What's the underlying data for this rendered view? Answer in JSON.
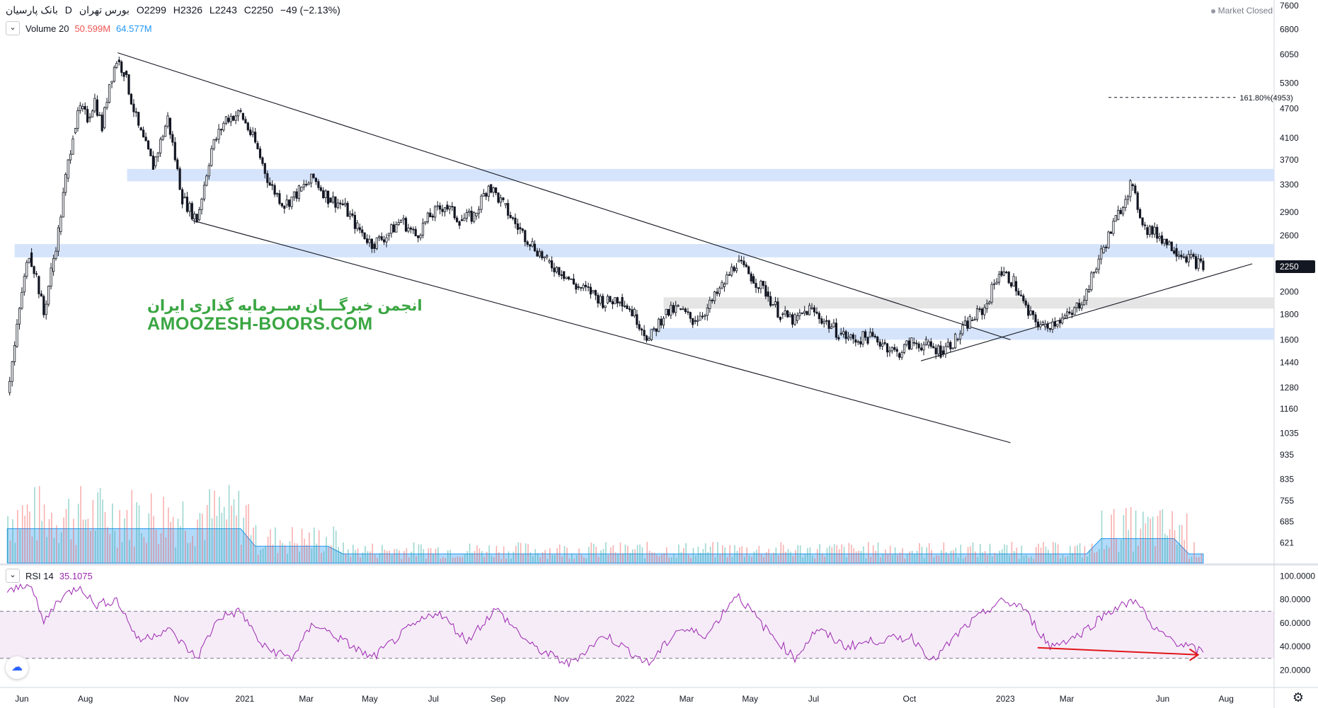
{
  "header": {
    "symbol": "بانک پارسیان",
    "interval": "D",
    "exchange": "بورس تهران",
    "open": "O2299",
    "high": "H2326",
    "low": "L2243",
    "close": "C2250",
    "change": "−49 (−2.13%)"
  },
  "status": {
    "market": "Market Closed"
  },
  "volume_legend": {
    "name": "Volume 20",
    "value1": "50.599M",
    "value2": "64.577M"
  },
  "rsi_legend": {
    "name": "RSI 14",
    "value": "35.1075"
  },
  "watermark": {
    "line1": "انجمن خبرگـــان ســرمایه گذاری ایران",
    "line2": "AMOOZESH-BOORS.COM"
  },
  "colors": {
    "up": "#26a69a",
    "down": "#ef5350",
    "rsi": "#9c27b0",
    "zone": "#d6e4fb",
    "grey_zone": "#e5e5e5",
    "arrow": "#e0161a",
    "wm": "#3aa642"
  },
  "chart_data": [
    {
      "type": "candlestick",
      "scale": "log",
      "price_axis_ticks": [
        7600,
        6800,
        6050,
        5300,
        4700,
        4100,
        3700,
        3300,
        2900,
        2600,
        2250,
        2000,
        1800,
        1600,
        1440,
        1280,
        1160,
        1035,
        935,
        835,
        755,
        685,
        621
      ],
      "last_price": 2250,
      "time_axis": [
        "Jun",
        "Aug",
        "Nov",
        "2021",
        "Mar",
        "May",
        "Jul",
        "Sep",
        "Nov",
        "2022",
        "Mar",
        "May",
        "Jul",
        "Oct",
        "2023",
        "Mar",
        "Jun",
        "Aug"
      ],
      "close_path": [
        [
          "2020-05-18",
          1250
        ],
        [
          "2020-05-25",
          1550
        ],
        [
          "2020-06-01",
          2000
        ],
        [
          "2020-06-08",
          2400
        ],
        [
          "2020-06-15",
          2150
        ],
        [
          "2020-06-22",
          1800
        ],
        [
          "2020-06-29",
          2200
        ],
        [
          "2020-07-06",
          2650
        ],
        [
          "2020-07-13",
          3400
        ],
        [
          "2020-07-20",
          4200
        ],
        [
          "2020-07-27",
          4700
        ],
        [
          "2020-08-03",
          4500
        ],
        [
          "2020-08-10",
          4900
        ],
        [
          "2020-08-17",
          4300
        ],
        [
          "2020-08-24",
          5300
        ],
        [
          "2020-08-31",
          5900
        ],
        [
          "2020-09-07",
          5600
        ],
        [
          "2020-09-21",
          4300
        ],
        [
          "2020-10-05",
          3600
        ],
        [
          "2020-10-19",
          4500
        ],
        [
          "2020-11-02",
          3100
        ],
        [
          "2020-11-16",
          2800
        ],
        [
          "2020-11-30",
          3900
        ],
        [
          "2020-12-14",
          4500
        ],
        [
          "2020-12-28",
          4600
        ],
        [
          "2021-01-11",
          4000
        ],
        [
          "2021-01-25",
          3300
        ],
        [
          "2021-02-08",
          3000
        ],
        [
          "2021-02-22",
          3200
        ],
        [
          "2021-03-08",
          3400
        ],
        [
          "2021-03-22",
          3100
        ],
        [
          "2021-04-05",
          3000
        ],
        [
          "2021-04-19",
          2700
        ],
        [
          "2021-05-03",
          2500
        ],
        [
          "2021-05-17",
          2600
        ],
        [
          "2021-05-31",
          2800
        ],
        [
          "2021-06-14",
          2600
        ],
        [
          "2021-06-28",
          2850
        ],
        [
          "2021-07-12",
          3000
        ],
        [
          "2021-07-26",
          2800
        ],
        [
          "2021-08-09",
          2850
        ],
        [
          "2021-08-23",
          3300
        ],
        [
          "2021-09-06",
          3000
        ],
        [
          "2021-09-20",
          2700
        ],
        [
          "2021-10-04",
          2500
        ],
        [
          "2021-10-18",
          2300
        ],
        [
          "2021-11-01",
          2200
        ],
        [
          "2021-11-15",
          2050
        ],
        [
          "2021-11-29",
          2000
        ],
        [
          "2021-12-13",
          1900
        ],
        [
          "2021-12-27",
          1950
        ],
        [
          "2022-01-10",
          1800
        ],
        [
          "2022-01-24",
          1600
        ],
        [
          "2022-02-07",
          1800
        ],
        [
          "2022-02-21",
          1850
        ],
        [
          "2022-03-07",
          1750
        ],
        [
          "2022-03-21",
          1850
        ],
        [
          "2022-04-04",
          2050
        ],
        [
          "2022-04-18",
          2300
        ],
        [
          "2022-05-02",
          2150
        ],
        [
          "2022-05-16",
          2000
        ],
        [
          "2022-05-30",
          1800
        ],
        [
          "2022-06-13",
          1750
        ],
        [
          "2022-06-27",
          1850
        ],
        [
          "2022-07-11",
          1750
        ],
        [
          "2022-07-25",
          1650
        ],
        [
          "2022-08-08",
          1600
        ],
        [
          "2022-08-22",
          1620
        ],
        [
          "2022-09-05",
          1580
        ],
        [
          "2022-09-19",
          1500
        ],
        [
          "2022-10-03",
          1580
        ],
        [
          "2022-10-17",
          1560
        ],
        [
          "2022-10-31",
          1520
        ],
        [
          "2022-11-14",
          1600
        ],
        [
          "2022-11-28",
          1750
        ],
        [
          "2022-12-12",
          1850
        ],
        [
          "2022-12-26",
          2200
        ],
        [
          "2023-01-09",
          2100
        ],
        [
          "2023-01-23",
          1800
        ],
        [
          "2023-02-06",
          1700
        ],
        [
          "2023-02-20",
          1750
        ],
        [
          "2023-03-06",
          1800
        ],
        [
          "2023-03-20",
          2000
        ],
        [
          "2023-04-03",
          2400
        ],
        [
          "2023-04-17",
          2800
        ],
        [
          "2023-05-01",
          3300
        ],
        [
          "2023-05-15",
          2700
        ],
        [
          "2023-05-29",
          2600
        ],
        [
          "2023-06-12",
          2450
        ],
        [
          "2023-06-26",
          2350
        ],
        [
          "2023-07-10",
          2250
        ]
      ],
      "annotations": {
        "fib_label": "161.80%(4953)",
        "fib_price": 4953,
        "support_resistance_zones": [
          [
            3350,
            3550
          ],
          [
            2350,
            2500
          ],
          [
            1600,
            1690
          ]
        ],
        "neutral_zone": [
          1850,
          1950
        ],
        "channel_top": [
          [
            "2020-09-01",
            6100
          ],
          [
            "2023-01-06",
            1600
          ]
        ],
        "channel_bottom": [
          [
            "2020-11-12",
            2790
          ],
          [
            "2023-01-06",
            990
          ]
        ],
        "uptrend": [
          [
            "2022-10-12",
            1450
          ],
          [
            "2023-08-26",
            2280
          ]
        ]
      }
    },
    {
      "type": "bar",
      "name": "Volume 20",
      "description": "daily volume bars with moving average area"
    },
    {
      "type": "line",
      "name": "RSI 14",
      "y_ticks": [
        "100.0000",
        "80.0000",
        "60.0000",
        "40.0000",
        "20.0000"
      ],
      "band": [
        30,
        70
      ],
      "current": 35.1075,
      "path": [
        [
          "2020-05-18",
          85
        ],
        [
          "2020-06-08",
          95
        ],
        [
          "2020-06-22",
          60
        ],
        [
          "2020-07-06",
          80
        ],
        [
          "2020-07-27",
          92
        ],
        [
          "2020-08-10",
          75
        ],
        [
          "2020-08-31",
          80
        ],
        [
          "2020-09-21",
          45
        ],
        [
          "2020-10-19",
          55
        ],
        [
          "2020-11-16",
          30
        ],
        [
          "2020-12-07",
          65
        ],
        [
          "2020-12-28",
          70
        ],
        [
          "2021-01-18",
          40
        ],
        [
          "2021-02-15",
          30
        ],
        [
          "2021-03-08",
          60
        ],
        [
          "2021-04-05",
          45
        ],
        [
          "2021-05-03",
          30
        ],
        [
          "2021-06-07",
          55
        ],
        [
          "2021-07-05",
          70
        ],
        [
          "2021-08-02",
          45
        ],
        [
          "2021-08-30",
          72
        ],
        [
          "2021-10-04",
          40
        ],
        [
          "2021-11-08",
          25
        ],
        [
          "2021-12-13",
          50
        ],
        [
          "2022-01-24",
          25
        ],
        [
          "2022-02-21",
          55
        ],
        [
          "2022-03-21",
          50
        ],
        [
          "2022-04-18",
          85
        ],
        [
          "2022-05-16",
          55
        ],
        [
          "2022-06-13",
          30
        ],
        [
          "2022-07-04",
          55
        ],
        [
          "2022-08-01",
          40
        ],
        [
          "2022-08-29",
          45
        ],
        [
          "2022-10-03",
          48
        ],
        [
          "2022-10-24",
          28
        ],
        [
          "2022-11-21",
          55
        ],
        [
          "2022-12-26",
          78
        ],
        [
          "2023-01-16",
          75
        ],
        [
          "2023-02-13",
          40
        ],
        [
          "2023-03-13",
          50
        ],
        [
          "2023-04-10",
          70
        ],
        [
          "2023-05-08",
          80
        ],
        [
          "2023-05-22",
          55
        ],
        [
          "2023-06-19",
          42
        ],
        [
          "2023-07-10",
          35
        ]
      ],
      "divergence_arrow": [
        [
          "2023-02-01",
          39
        ],
        [
          "2023-07-05",
          33
        ]
      ]
    }
  ]
}
